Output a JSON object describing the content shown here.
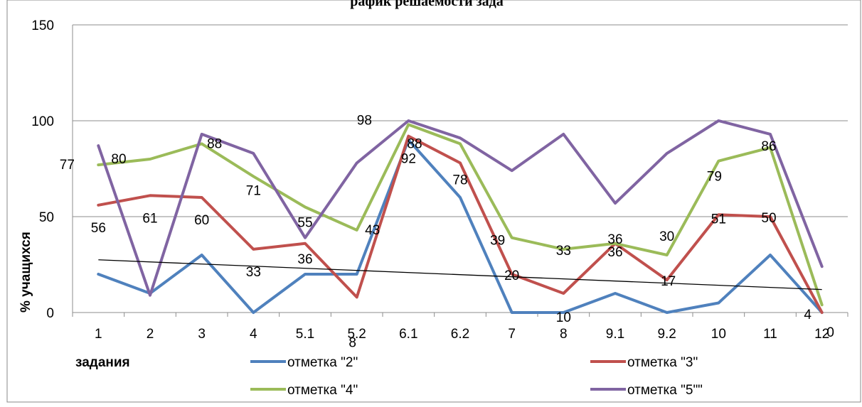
{
  "chart_data": {
    "type": "line",
    "title": "рафик решаемости зада",
    "xlabel": "задания",
    "ylabel": "% учащихся",
    "categories": [
      "1",
      "2",
      "3",
      "4",
      "5.1",
      "5.2",
      "6.1",
      "6.2",
      "7",
      "8",
      "9.1",
      "9.2",
      "10",
      "11",
      "12"
    ],
    "y_ticks": [
      "0",
      "50",
      "100",
      "150"
    ],
    "ylim": [
      0,
      150
    ],
    "grid": "horizontal",
    "legend_position": "bottom",
    "series": [
      {
        "name": "отметка \"2\"",
        "color": "#4f81bd",
        "values": [
          20,
          10,
          30,
          0,
          20,
          20,
          90,
          60,
          0,
          0,
          10,
          0,
          5,
          30,
          0
        ],
        "labels": [],
        "label_visible": false
      },
      {
        "name": "отметка \"3\"",
        "color": "#c0504d",
        "values": [
          56,
          61,
          60,
          33,
          36,
          8,
          92,
          78,
          20,
          10,
          36,
          17,
          51,
          50,
          0
        ],
        "labels": [
          "56",
          "61",
          "60",
          "33",
          "36",
          "8",
          "92",
          "78",
          "20",
          "10",
          "36",
          "17",
          "51",
          "50",
          "0"
        ]
      },
      {
        "name": "отметка \"4\"",
        "color": "#9bbb59",
        "values": [
          77,
          80,
          88,
          71,
          55,
          43,
          98,
          88,
          39,
          33,
          36,
          30,
          79,
          86,
          4
        ],
        "labels": [
          "77",
          "80",
          "88",
          "71",
          "55",
          "43",
          "98",
          "88",
          "39",
          "33",
          "36",
          "30",
          "79",
          "86",
          "4"
        ]
      },
      {
        "name": "отметка \"5\"\"",
        "color": "#8064a2",
        "values": [
          87,
          9,
          93,
          83,
          39,
          78,
          100,
          91,
          74,
          93,
          57,
          83,
          100,
          93,
          24
        ],
        "labels": []
      }
    ],
    "trendline": {
      "color": "#000000",
      "start": 27.5,
      "end": 12
    }
  }
}
